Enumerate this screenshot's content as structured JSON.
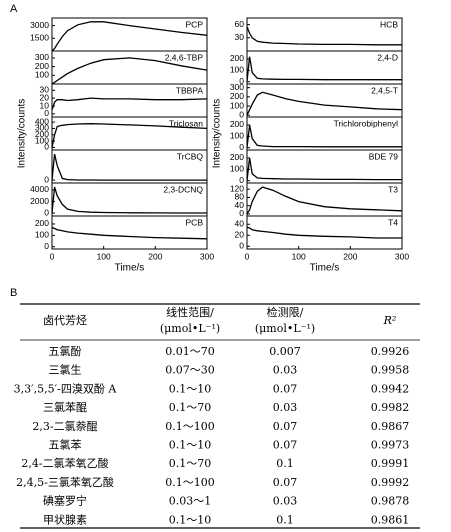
{
  "panel_labels": [
    "A",
    "B"
  ],
  "chart_data": [
    {
      "type": "line",
      "label": "PCP",
      "ylabel": "Intensity/counts",
      "x": [
        0,
        5,
        10,
        20,
        30,
        50,
        75,
        100,
        150,
        200,
        250,
        300
      ],
      "values": [
        0,
        300,
        800,
        1700,
        2400,
        3100,
        3450,
        3450,
        3000,
        2600,
        2200,
        1850
      ],
      "xlim": [
        0,
        300
      ],
      "ylim": [
        0,
        3900
      ],
      "yticks": [
        1500,
        3000
      ]
    },
    {
      "type": "line",
      "label": "2,4,6-TBP",
      "x": [
        0,
        5,
        10,
        20,
        30,
        50,
        75,
        100,
        150,
        200,
        250,
        300
      ],
      "values": [
        0,
        20,
        40,
        80,
        120,
        180,
        240,
        280,
        300,
        270,
        210,
        160
      ],
      "xlim": [
        0,
        300
      ],
      "ylim": [
        0,
        380
      ],
      "yticks": [
        100,
        200,
        300
      ]
    },
    {
      "type": "line",
      "label": "TBBPA",
      "x": [
        0,
        5,
        10,
        20,
        30,
        50,
        75,
        100,
        150,
        200,
        250,
        300
      ],
      "values": [
        5,
        15,
        18,
        18,
        17,
        18,
        20,
        19,
        19,
        18,
        18,
        19
      ],
      "xlim": [
        0,
        300
      ],
      "ylim": [
        -4,
        38
      ],
      "yticks": [
        0,
        10,
        20,
        30
      ]
    },
    {
      "type": "line",
      "label": "Triclosan",
      "x": [
        0,
        5,
        10,
        20,
        30,
        50,
        75,
        100,
        150,
        200,
        250,
        300
      ],
      "values": [
        0,
        200,
        330,
        350,
        360,
        370,
        375,
        370,
        355,
        340,
        320,
        300
      ],
      "xlim": [
        0,
        300
      ],
      "ylim": [
        -40,
        480
      ],
      "yticks": [
        0,
        100,
        200,
        300,
        400
      ]
    },
    {
      "type": "line",
      "label": "TrCBQ",
      "x": [
        0,
        5,
        10,
        20,
        30,
        50,
        75,
        100,
        150,
        200,
        250,
        300
      ],
      "values": [
        0,
        4500,
        2500,
        300,
        80,
        20,
        10,
        5,
        5,
        0,
        0,
        0
      ],
      "xlim": [
        0,
        300
      ],
      "ylim": [
        -500,
        5200
      ],
      "yticks": [
        0
      ]
    },
    {
      "type": "line",
      "label": "2,3-DCNQ",
      "x": [
        0,
        5,
        10,
        20,
        30,
        50,
        75,
        100,
        150,
        200,
        250,
        300
      ],
      "values": [
        0,
        4500,
        3000,
        1500,
        700,
        300,
        150,
        100,
        50,
        30,
        20,
        10
      ],
      "xlim": [
        0,
        300
      ],
      "ylim": [
        -500,
        5200
      ],
      "yticks": [
        0,
        2000,
        4000
      ]
    },
    {
      "type": "line",
      "label": "PCB",
      "x": [
        0,
        5,
        10,
        20,
        30,
        50,
        75,
        100,
        150,
        200,
        250,
        300
      ],
      "values": [
        170,
        160,
        150,
        140,
        130,
        120,
        110,
        100,
        90,
        80,
        75,
        70
      ],
      "xlim": [
        0,
        300
      ],
      "ylim": [
        -20,
        270
      ],
      "yticks": [
        0,
        100,
        200
      ],
      "xticks": [
        0,
        100,
        200,
        300
      ],
      "xlabel": "Time/s"
    },
    {
      "type": "line",
      "label": "HCB",
      "ylabel": "Intensity/counts",
      "x": [
        0,
        5,
        10,
        20,
        30,
        50,
        75,
        100,
        150,
        200,
        250,
        300
      ],
      "values": [
        55,
        40,
        30,
        22,
        20,
        18,
        17,
        16,
        15,
        15,
        14,
        14
      ],
      "xlim": [
        0,
        300
      ],
      "ylim": [
        0,
        75
      ],
      "yticks": [
        30,
        60
      ]
    },
    {
      "type": "line",
      "label": "2,4-D",
      "x": [
        0,
        5,
        10,
        20,
        30,
        50,
        75,
        100,
        150,
        200,
        250,
        300
      ],
      "values": [
        0,
        220,
        80,
        30,
        25,
        22,
        20,
        20,
        18,
        18,
        18,
        18
      ],
      "xlim": [
        0,
        300
      ],
      "ylim": [
        -20,
        270
      ],
      "yticks": [
        0,
        100,
        200
      ]
    },
    {
      "type": "line",
      "label": "2,4,5-T",
      "x": [
        0,
        5,
        10,
        20,
        30,
        50,
        75,
        100,
        150,
        200,
        250,
        300
      ],
      "values": [
        0,
        60,
        120,
        220,
        250,
        220,
        180,
        150,
        110,
        90,
        70,
        60
      ],
      "xlim": [
        0,
        300
      ],
      "ylim": [
        -20,
        340
      ],
      "yticks": [
        0,
        100,
        200,
        300
      ]
    },
    {
      "type": "line",
      "label": "Trichlorobiphenyl",
      "x": [
        0,
        5,
        10,
        20,
        30,
        50,
        75,
        100,
        150,
        200,
        250,
        300
      ],
      "values": [
        0,
        200,
        80,
        20,
        15,
        10,
        10,
        10,
        8,
        8,
        8,
        8
      ],
      "xlim": [
        0,
        300
      ],
      "ylim": [
        -20,
        270
      ],
      "yticks": [
        0,
        100,
        200
      ]
    },
    {
      "type": "line",
      "label": "BDE 79",
      "x": [
        0,
        5,
        10,
        20,
        30,
        50,
        75,
        100,
        150,
        200,
        250,
        300
      ],
      "values": [
        0,
        200,
        60,
        25,
        20,
        18,
        15,
        15,
        12,
        12,
        10,
        10
      ],
      "xlim": [
        0,
        300
      ],
      "ylim": [
        -20,
        270
      ],
      "yticks": [
        0,
        100,
        200
      ]
    },
    {
      "type": "line",
      "label": "T3",
      "x": [
        0,
        5,
        10,
        20,
        30,
        50,
        75,
        100,
        150,
        200,
        250,
        300
      ],
      "values": [
        0,
        20,
        60,
        110,
        130,
        115,
        85,
        60,
        35,
        25,
        20,
        15
      ],
      "xlim": [
        0,
        300
      ],
      "ylim": [
        -10,
        150
      ],
      "yticks": [
        0,
        40,
        80,
        120
      ]
    },
    {
      "type": "line",
      "label": "T4",
      "x": [
        0,
        5,
        10,
        20,
        30,
        50,
        75,
        100,
        150,
        200,
        250,
        300
      ],
      "values": [
        35,
        33,
        30,
        28,
        27,
        25,
        22,
        20,
        18,
        17,
        15,
        15
      ],
      "xlim": [
        0,
        300
      ],
      "ylim": [
        -5,
        55
      ],
      "yticks": [
        0,
        20,
        40
      ],
      "xticks": [
        0,
        100,
        200,
        300
      ],
      "xlabel": "Time/s"
    }
  ],
  "table": {
    "header": [
      [
        "卤代芳烃"
      ],
      [
        "线性范围/",
        "(μmol•L⁻¹)"
      ],
      [
        "检测限/",
        "(μmol•L⁻¹)"
      ],
      [
        "R²"
      ]
    ],
    "rows": [
      [
        "五氯酚",
        "0.01～70",
        0.007,
        0.9926
      ],
      [
        "三氯生",
        "0.07～30",
        0.03,
        0.9958
      ],
      [
        "3,3′,5,5′-四溴双酚 A",
        "0.1～10",
        0.07,
        0.9942
      ],
      [
        "三氯苯醌",
        "0.1～70",
        0.03,
        0.9982
      ],
      [
        "2,3-二氯萘醌",
        "0.1～100",
        0.07,
        0.9867
      ],
      [
        "五氯苯",
        "0.1～10",
        0.07,
        0.9973
      ],
      [
        "2,4-二氯苯氧乙酸",
        "0.1～70",
        0.1,
        0.9991
      ],
      [
        "2,4,5-三氯苯氧乙酸",
        "0.1～100",
        0.07,
        0.9992
      ],
      [
        "碘塞罗宁",
        "0.03～1",
        0.03,
        0.9878
      ],
      [
        "甲状腺素",
        "0.1～10",
        0.1,
        0.9861
      ]
    ]
  }
}
